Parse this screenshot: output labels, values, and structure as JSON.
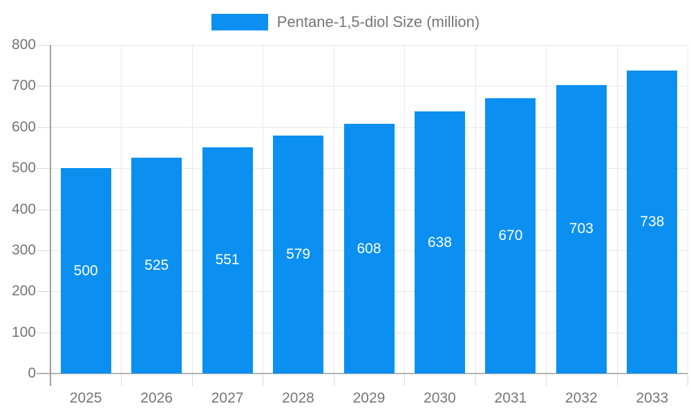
{
  "chart_data": {
    "type": "bar",
    "title": "Pentane-1,5-diol Size (million)",
    "legend_entries": [
      "Pentane-1,5-diol Size (million)"
    ],
    "legend_position": "top",
    "categories": [
      "2025",
      "2026",
      "2027",
      "2028",
      "2029",
      "2030",
      "2031",
      "2032",
      "2033"
    ],
    "values": [
      500,
      525,
      551,
      579,
      608,
      638,
      670,
      703,
      738
    ],
    "xlabel": "",
    "ylabel": "",
    "ylim": [
      0,
      800
    ],
    "ytick_step": 100,
    "ytick_labels": [
      "0",
      "100",
      "200",
      "300",
      "400",
      "500",
      "600",
      "700",
      "800"
    ],
    "grid": true,
    "value_labels_shown": true,
    "colors": {
      "bar": "#0b90f1",
      "value_label": "#ffffff",
      "axis_text": "#757575",
      "grid": "#e8e8e8",
      "tick": "#d9d9d9",
      "x_axis_line": "#b3b3b3",
      "y_axis_line": "#9e9e9e",
      "background": "#ffffff"
    }
  }
}
